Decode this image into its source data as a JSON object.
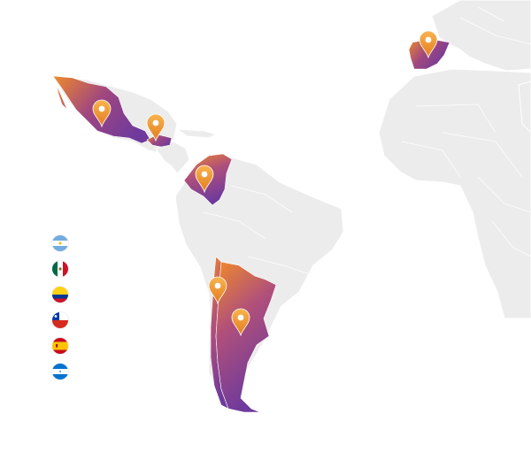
{
  "map": {
    "colors": {
      "land": "#ececec",
      "highlight_top": "#f08a2a",
      "highlight_bottom": "#6f3a9c",
      "pin_top": "#f7a94a",
      "pin_bottom": "#e67e22"
    },
    "highlighted_countries": [
      {
        "id": "mexico"
      },
      {
        "id": "honduras"
      },
      {
        "id": "colombia"
      },
      {
        "id": "chile"
      },
      {
        "id": "argentina"
      },
      {
        "id": "spain"
      }
    ],
    "pins": [
      {
        "id": "mexico",
        "icon": "map-pin-icon"
      },
      {
        "id": "honduras",
        "icon": "map-pin-icon"
      },
      {
        "id": "colombia",
        "icon": "map-pin-icon"
      },
      {
        "id": "chile",
        "icon": "map-pin-icon"
      },
      {
        "id": "argentina",
        "icon": "map-pin-icon"
      },
      {
        "id": "spain",
        "icon": "map-pin-icon"
      }
    ]
  },
  "legend": {
    "flags": [
      {
        "id": "argentina",
        "icon": "argentina-flag-icon"
      },
      {
        "id": "mexico",
        "icon": "mexico-flag-icon"
      },
      {
        "id": "colombia",
        "icon": "colombia-flag-icon"
      },
      {
        "id": "chile",
        "icon": "chile-flag-icon"
      },
      {
        "id": "spain",
        "icon": "spain-flag-icon"
      },
      {
        "id": "honduras",
        "icon": "honduras-flag-icon"
      }
    ]
  }
}
